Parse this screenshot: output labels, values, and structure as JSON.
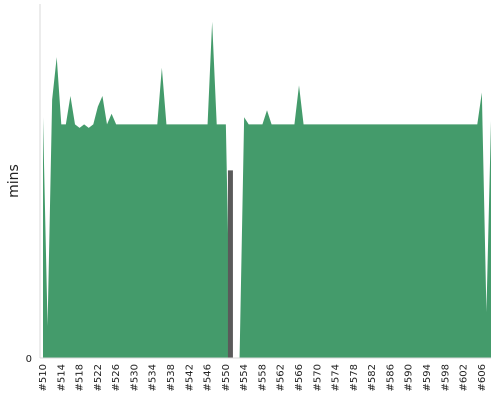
{
  "chart_data": {
    "type": "area",
    "title": "",
    "xlabel": "",
    "ylabel": "mins",
    "y_ticks": [
      "0"
    ],
    "ylim": [
      0,
      100
    ],
    "grid": false,
    "legend": "none",
    "colors": {
      "area": "#449b6b",
      "gap": "#5a5a5a",
      "axis": "#d8d8d8",
      "text": "#222222"
    },
    "x": [
      "#510",
      "#511",
      "#512",
      "#513",
      "#514",
      "#515",
      "#516",
      "#517",
      "#518",
      "#519",
      "#520",
      "#521",
      "#522",
      "#523",
      "#524",
      "#525",
      "#526",
      "#527",
      "#528",
      "#529",
      "#530",
      "#531",
      "#532",
      "#533",
      "#534",
      "#535",
      "#536",
      "#537",
      "#538",
      "#539",
      "#540",
      "#541",
      "#542",
      "#543",
      "#544",
      "#545",
      "#546",
      "#547",
      "#548",
      "#549",
      "#550",
      "#551",
      "#552",
      "#553",
      "#554",
      "#555",
      "#556",
      "#557",
      "#558",
      "#559",
      "#560",
      "#561",
      "#562",
      "#563",
      "#564",
      "#565",
      "#566",
      "#567",
      "#568",
      "#569",
      "#570",
      "#571",
      "#572",
      "#573",
      "#574",
      "#575",
      "#576",
      "#577",
      "#578",
      "#579",
      "#580",
      "#581",
      "#582",
      "#583",
      "#584",
      "#585",
      "#586",
      "#587",
      "#588",
      "#589",
      "#590",
      "#591",
      "#592",
      "#593",
      "#594",
      "#595",
      "#596",
      "#597",
      "#598",
      "#599",
      "#600",
      "#601",
      "#602",
      "#603",
      "#604",
      "#605",
      "#606",
      "#607",
      "#608"
    ],
    "x_tick_labels": [
      "#510",
      "#514",
      "#518",
      "#522",
      "#526",
      "#530",
      "#534",
      "#538",
      "#542",
      "#546",
      "#550",
      "#554",
      "#558",
      "#562",
      "#566",
      "#570",
      "#574",
      "#578",
      "#582",
      "#586",
      "#590",
      "#594",
      "#598",
      "#602",
      "#606"
    ],
    "series": [
      {
        "values": [
          68,
          9,
          73,
          85,
          66,
          66,
          74,
          66,
          65,
          66,
          65,
          66,
          71,
          74,
          66,
          69,
          66,
          66,
          66,
          66,
          66,
          66,
          66,
          66,
          66,
          66,
          82,
          66,
          66,
          66,
          66,
          66,
          66,
          66,
          66,
          66,
          66,
          95,
          66,
          66,
          66,
          0,
          0,
          0,
          68,
          66,
          66,
          66,
          66,
          70,
          66,
          66,
          66,
          66,
          66,
          66,
          77,
          66,
          66,
          66,
          66,
          66,
          66,
          66,
          66,
          66,
          66,
          66,
          66,
          66,
          66,
          66,
          66,
          66,
          66,
          66,
          66,
          66,
          66,
          66,
          66,
          66,
          66,
          66,
          66,
          66,
          66,
          66,
          66,
          66,
          66,
          66,
          66,
          66,
          66,
          66,
          75,
          13,
          67
        ],
        "gap": [
          0,
          0,
          0,
          0,
          0,
          0,
          0,
          0,
          0,
          0,
          0,
          0,
          0,
          0,
          0,
          0,
          0,
          0,
          0,
          0,
          0,
          0,
          0,
          0,
          0,
          0,
          0,
          0,
          0,
          0,
          0,
          0,
          0,
          0,
          0,
          0,
          0,
          0,
          0,
          0,
          0,
          53,
          0,
          0,
          0,
          0,
          0,
          0,
          0,
          0,
          0,
          0,
          0,
          0,
          0,
          0,
          0,
          0,
          0,
          0,
          0,
          0,
          0,
          0,
          0,
          0,
          0,
          0,
          0,
          0,
          0,
          0,
          0,
          0,
          0,
          0,
          0,
          0,
          0,
          0,
          0,
          0,
          0,
          0,
          0,
          0,
          0,
          0,
          0,
          0,
          0,
          0,
          0,
          0,
          0,
          0,
          0,
          0,
          0
        ]
      }
    ]
  }
}
